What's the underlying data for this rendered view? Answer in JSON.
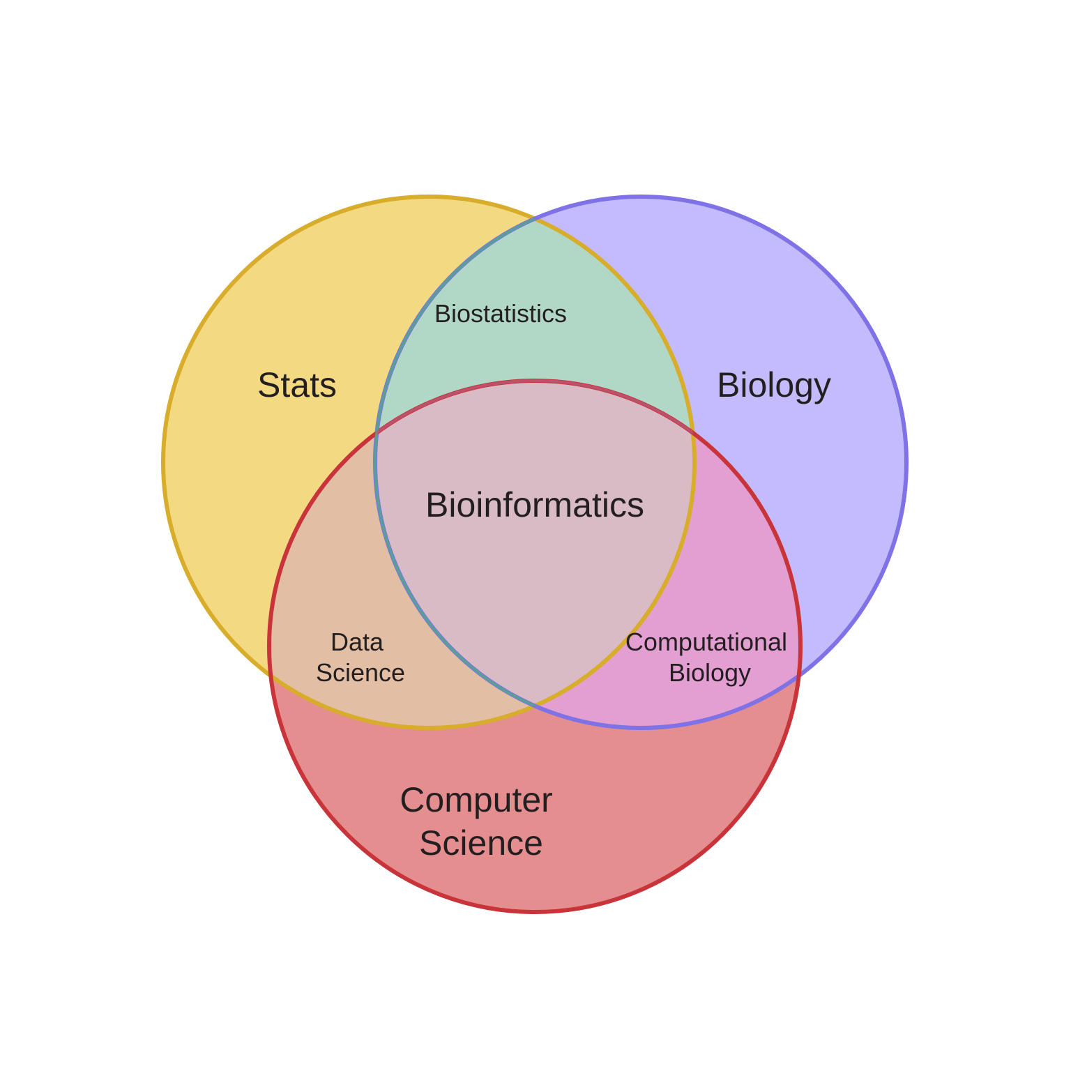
{
  "sets": [
    {
      "id": "stats",
      "label": "Stats",
      "fill": "#f4d983",
      "stroke": "#d7ad2b"
    },
    {
      "id": "biology",
      "label": "Biology",
      "fill": "#c3bbfc",
      "stroke": "#7e72e6"
    },
    {
      "id": "cs",
      "label_lines": [
        "Computer",
        "Science"
      ],
      "fill": "#e58e8f",
      "stroke": "#c9343a"
    }
  ],
  "intersections": {
    "stats_biology": {
      "label": "Biostatistics",
      "fill": "#b1d8c7",
      "stroke": "#55a58a"
    },
    "stats_cs": {
      "label_lines": [
        "Data",
        "Science"
      ],
      "fill": "#e2bea5"
    },
    "biology_cs": {
      "label_lines": [
        "Computational",
        "Biology"
      ],
      "fill": "#e39fd1"
    },
    "all": {
      "label": "Bioinformatics",
      "fill": "#d9bbc6",
      "stroke": "#b85a7a"
    }
  }
}
